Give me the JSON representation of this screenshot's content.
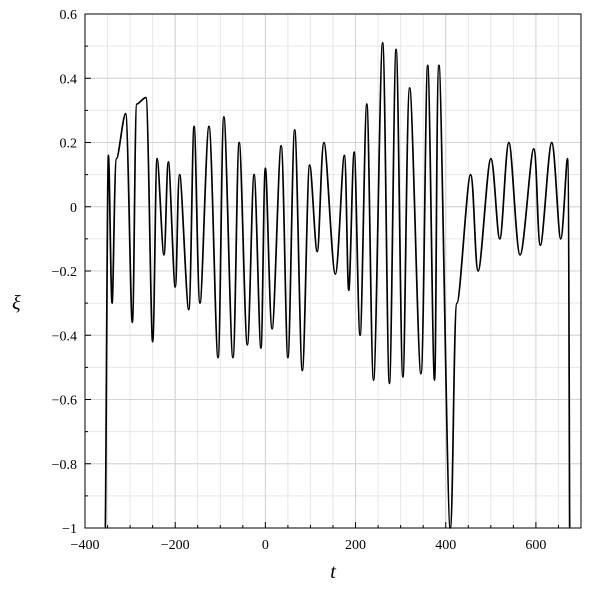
{
  "chart_data": {
    "type": "line",
    "title": "",
    "xlabel": "t",
    "ylabel": "ξ",
    "xlim": [
      -400,
      700
    ],
    "ylim": [
      -1,
      0.6
    ],
    "xticks": [
      -400,
      -200,
      0,
      200,
      400,
      600
    ],
    "yticks": [
      -1,
      -0.8,
      -0.6,
      -0.4,
      -0.2,
      0,
      0.2,
      0.4,
      0.6
    ],
    "xtick_labels": [
      "−400",
      "−200",
      "0",
      "200",
      "400",
      "600"
    ],
    "ytick_labels": [
      "−1",
      "−0.8",
      "−0.6",
      "−0.4",
      "−0.2",
      "0",
      "0.2",
      "0.4",
      "0.6"
    ],
    "grid": true,
    "colors": {
      "series": "#000000",
      "grid": "#d4d4d4"
    },
    "series": [
      {
        "x": [
          -355,
          -348,
          -340,
          -330,
          -310,
          -295,
          -285,
          -265,
          -250,
          -240,
          -225,
          -215,
          -200,
          -190,
          -170,
          -158,
          -145,
          -125,
          -105,
          -92,
          -72,
          -58,
          -40,
          -25,
          -10,
          0,
          15,
          35,
          50,
          65,
          82,
          98,
          115,
          130,
          155,
          175,
          185,
          197,
          210,
          225,
          240,
          260,
          275,
          290,
          305,
          320,
          345,
          360,
          375,
          385,
          410,
          425,
          455,
          472,
          500,
          520,
          540,
          565,
          595,
          610,
          635,
          655,
          670,
          675
        ],
        "y": [
          -1,
          0.16,
          -0.3,
          0.15,
          0.29,
          -0.36,
          0.32,
          0.34,
          -0.42,
          0.15,
          -0.15,
          0.14,
          -0.25,
          0.1,
          -0.32,
          0.25,
          -0.3,
          0.25,
          -0.47,
          0.28,
          -0.47,
          0.2,
          -0.43,
          0.1,
          -0.44,
          0.12,
          -0.38,
          0.19,
          -0.47,
          0.24,
          -0.51,
          0.13,
          -0.14,
          0.2,
          -0.21,
          0.16,
          -0.26,
          0.17,
          -0.4,
          0.32,
          -0.54,
          0.51,
          -0.55,
          0.49,
          -0.53,
          0.37,
          -0.52,
          0.44,
          -0.54,
          0.44,
          -1,
          -0.3,
          0.1,
          -0.2,
          0.15,
          -0.1,
          0.2,
          -0.15,
          0.18,
          -0.12,
          0.2,
          -0.1,
          0.15,
          -1
        ]
      }
    ]
  }
}
